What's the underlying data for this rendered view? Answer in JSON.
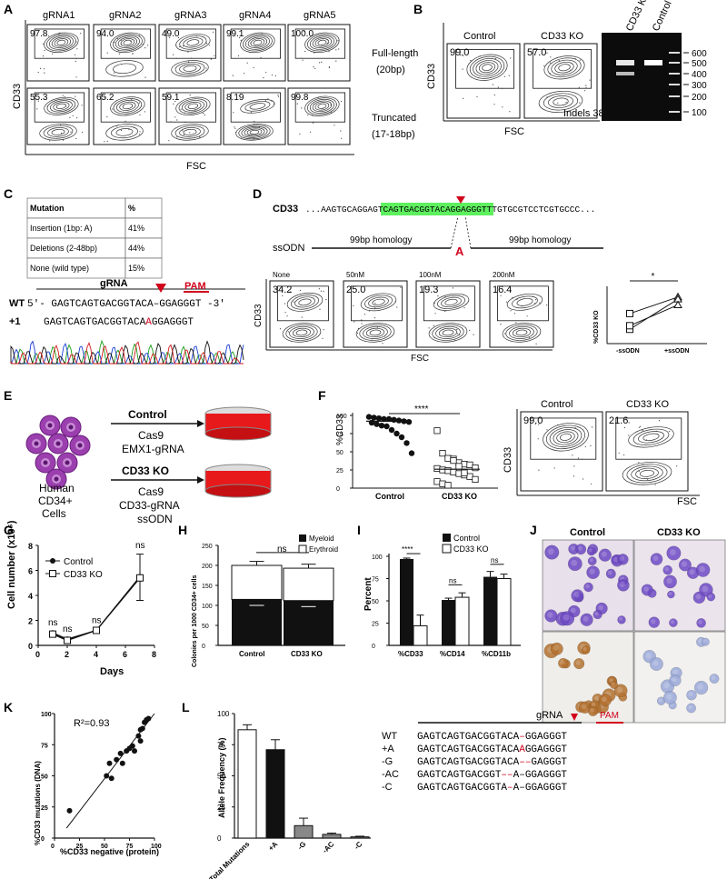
{
  "panels": {
    "A": {
      "letter": "A",
      "columns": [
        "gRNA1",
        "gRNA2",
        "gRNA3",
        "gRNA4",
        "gRNA5"
      ],
      "rows": [
        {
          "label_line1": "Full-length",
          "label_line2": "(20bp)",
          "values": [
            "97.8",
            "94.0",
            "49.0",
            "99.1",
            "100.0"
          ]
        },
        {
          "label_line1": "Truncated",
          "label_line2": "(17-18bp)",
          "values": [
            "55.3",
            "65.2",
            "59.1",
            "8.19",
            "99.8"
          ]
        }
      ],
      "ylabel": "CD33",
      "xlabel": "FSC"
    },
    "B": {
      "letter": "B",
      "plots": [
        {
          "title": "Control",
          "value": "99.0"
        },
        {
          "title": "CD33 KO",
          "value": "57.0"
        }
      ],
      "ylabel": "CD33",
      "xlabel": "FSC",
      "gel_lanes": [
        "CD33 KO",
        "Control"
      ],
      "ladder": [
        "600",
        "500",
        "400",
        "300",
        "200",
        "100"
      ],
      "indels": "Indels 38%"
    },
    "C": {
      "letter": "C",
      "table_header": [
        "Mutation",
        "%"
      ],
      "table_rows": [
        [
          "Insertion (1bp: A)",
          "41%"
        ],
        [
          "Deletions (2-48bp)",
          "44%"
        ],
        [
          "None (wild type)",
          "15%"
        ]
      ],
      "grna": "gRNA",
      "pam": "PAM",
      "wt_label": "WT",
      "wt_seq": "5'- GAGTCAGTGACGGTACA–GGAGGGT -3'",
      "plus_label": "+1",
      "plus_seq_a": "GAGTCAGTGACGGTACA",
      "plus_ins": "A",
      "plus_seq_b": "GGAGGGT"
    },
    "D": {
      "letter": "D",
      "gene": "CD33",
      "seq_pre": "...AAGTGCAGGA",
      "seq_hl": "GTCAGTGACGGTACAGGA",
      "seq_post": "GGGTTTGTGCGTCCTCGTGCCC...",
      "ssodn": "ssODN",
      "hom_left": "99bp homology",
      "hom_right": "99bp homology",
      "insert": "A",
      "plots": [
        {
          "title": "None",
          "value": "34.2"
        },
        {
          "title": "50nM",
          "value": "25.0"
        },
        {
          "title": "100nM",
          "value": "19.3"
        },
        {
          "title": "200nM",
          "value": "16.4"
        }
      ],
      "ylabel": "CD33",
      "xlabel": "FSC",
      "paired": {
        "ylabel": "%CD33 KO",
        "xcats": [
          "-ssODN",
          "+ssODN"
        ],
        "sig": "*",
        "pairs": [
          [
            62,
            85
          ],
          [
            40,
            82
          ],
          [
            45,
            74
          ]
        ]
      }
    },
    "E": {
      "letter": "E",
      "cells_label": [
        "Human",
        "CD34+",
        "Cells"
      ],
      "control": {
        "title": "Control",
        "lines": [
          "Cas9",
          "EMX1-gRNA"
        ]
      },
      "ko": {
        "title": "CD33 KO",
        "lines": [
          "Cas9",
          "CD33-gRNA",
          "ssODN"
        ]
      }
    },
    "F": {
      "letter": "F",
      "ylabel": "%CD33",
      "yticks": [
        "0",
        "25",
        "50",
        "75",
        "100"
      ],
      "xcats": [
        "Control",
        "CD33 KO"
      ],
      "sig": "****",
      "plots": [
        {
          "title": "Control",
          "value": "99.0"
        },
        {
          "title": "CD33 KO",
          "value": "21.6"
        }
      ],
      "flow_ylabel": "CD33",
      "flow_xlabel": "FSC"
    },
    "G": {
      "letter": "G",
      "ylabel": "Cell number (x10⁶)",
      "xlabel": "Days",
      "yticks": [
        "0",
        "2",
        "4",
        "6",
        "8"
      ],
      "xticks": [
        "0",
        "2",
        "4",
        "6",
        "8"
      ],
      "legend": [
        "Control",
        "CD33 KO"
      ],
      "sig": [
        "ns",
        "ns",
        "ns",
        "ns"
      ],
      "control": [
        [
          1,
          1.0
        ],
        [
          2,
          0.5
        ],
        [
          4,
          1.2
        ],
        [
          7,
          5.5
        ]
      ],
      "ko": [
        [
          1,
          0.9
        ],
        [
          2,
          0.4
        ],
        [
          4,
          1.2
        ],
        [
          7,
          5.4
        ]
      ]
    },
    "H": {
      "letter": "H",
      "ylabel": "Colonies per 1000 CD34+ cells",
      "yticks": [
        "0",
        "50",
        "100",
        "150",
        "200",
        "250"
      ],
      "xcats": [
        "Control",
        "CD33 KO"
      ],
      "legend": [
        "Myeloid",
        "Erythroid"
      ],
      "sig": "ns",
      "myeloid": [
        115,
        112
      ],
      "total": [
        200,
        193
      ]
    },
    "I": {
      "letter": "I",
      "ylabel": "Percent",
      "yticks": [
        "0",
        "25",
        "50",
        "75",
        "100"
      ],
      "xcats": [
        "%CD33",
        "%CD14",
        "%CD11b"
      ],
      "legend": [
        "Control",
        "CD33 KO"
      ],
      "sig": [
        "****",
        "ns",
        "ns"
      ],
      "control": [
        97,
        51,
        77
      ],
      "ko": [
        22,
        54,
        75
      ]
    },
    "J": {
      "letter": "J",
      "cols": [
        "Control",
        "CD33 KO"
      ]
    },
    "K": {
      "letter": "K",
      "r2": "R²=0.93",
      "ylabel": "%CD33 mutations (DNA)",
      "xlabel": "%CD33 negative (protein)",
      "ticks": [
        "0",
        "25",
        "50",
        "75",
        "100"
      ],
      "points": [
        [
          15,
          22
        ],
        [
          52,
          50
        ],
        [
          57,
          48
        ],
        [
          55,
          60
        ],
        [
          62,
          63
        ],
        [
          66,
          68
        ],
        [
          68,
          60
        ],
        [
          72,
          70
        ],
        [
          75,
          72
        ],
        [
          78,
          74
        ],
        [
          80,
          70
        ],
        [
          84,
          82
        ],
        [
          86,
          78
        ],
        [
          88,
          88
        ],
        [
          90,
          93
        ],
        [
          92,
          95
        ],
        [
          94,
          96
        ],
        [
          86,
          87
        ]
      ]
    },
    "L": {
      "letter": "L",
      "ylabel": "Allele Frequency (%)",
      "yticks": [
        "0",
        "25",
        "50",
        "75",
        "100"
      ],
      "xcats": [
        "Total Mutations",
        "+A",
        "-G",
        "-AC",
        "-C"
      ],
      "values": [
        87,
        71,
        10,
        3,
        1
      ],
      "grna": "gRNA",
      "pam": "PAM",
      "alleles": [
        {
          "label": "WT",
          "parts": [
            "GAGTCAGTGACGGTACA",
            "–",
            "GGAGGGT"
          ]
        },
        {
          "label": "+A",
          "parts": [
            "GAGTCAGTGACGGTACA",
            "A",
            "GGAGGGT"
          ]
        },
        {
          "label": "-G",
          "parts": [
            "GAGTCAGTGACGGTACA",
            "––",
            "GAGGGT"
          ]
        },
        {
          "label": "-AC",
          "parts": [
            "GAGTCAGTGACGGT",
            "––",
            "A–GGAGGGT"
          ]
        },
        {
          "label": "-C",
          "parts": [
            "GAGTCAGTGACGGTA",
            "–",
            "A–GGAGGGT"
          ]
        }
      ]
    }
  }
}
